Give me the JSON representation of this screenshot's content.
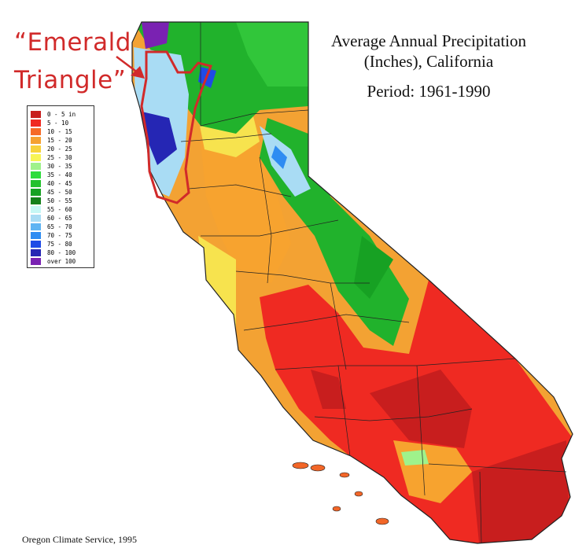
{
  "title": {
    "line1": "Average Annual Precipitation",
    "line2": "(Inches), California",
    "line3": "Period: 1961-1990"
  },
  "callout": {
    "line1": "“Emerald",
    "line2": "Triangle”"
  },
  "credit": "Oregon Climate Service, 1995",
  "legend": [
    {
      "label": "0 - 5 in",
      "color": "#c81e1e"
    },
    {
      "label": "5 - 10",
      "color": "#f02a22"
    },
    {
      "label": "10 - 15",
      "color": "#f66a27"
    },
    {
      "label": "15 - 20",
      "color": "#f5a131"
    },
    {
      "label": "20 - 25",
      "color": "#f7d23c"
    },
    {
      "label": "25 - 30",
      "color": "#f7f456"
    },
    {
      "label": "30 - 35",
      "color": "#9ff28b"
    },
    {
      "label": "35 - 40",
      "color": "#2fdc3c"
    },
    {
      "label": "40 - 45",
      "color": "#24c12e"
    },
    {
      "label": "45 - 50",
      "color": "#17a123"
    },
    {
      "label": "50 - 55",
      "color": "#15801a"
    },
    {
      "label": "55 - 60",
      "color": "#c6f7f5"
    },
    {
      "label": "60 - 65",
      "color": "#a9dcf4"
    },
    {
      "label": "65 - 70",
      "color": "#5fb4f3"
    },
    {
      "label": "70 - 75",
      "color": "#2e8cf2"
    },
    {
      "label": "75 - 80",
      "color": "#1f4be6"
    },
    {
      "label": "80 - 100",
      "color": "#2526b4"
    },
    {
      "label": "over 100",
      "color": "#7a22b2"
    }
  ]
}
